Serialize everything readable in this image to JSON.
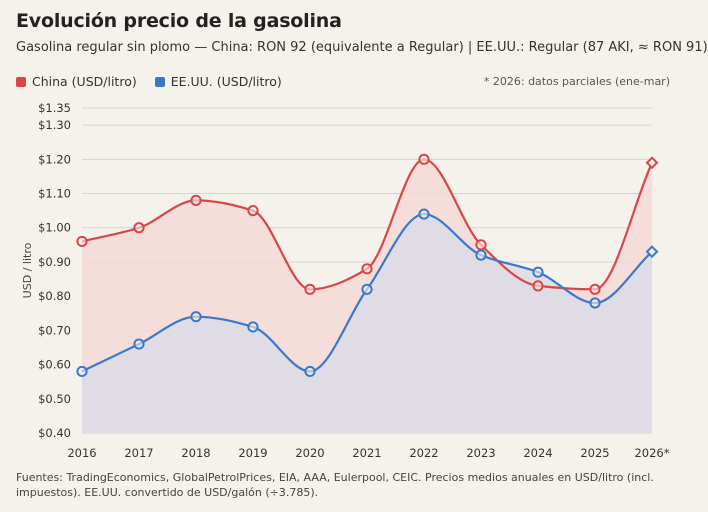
{
  "header": {
    "title": "Evolución precio de la gasolina",
    "subtitle": "Gasolina regular sin plomo — China: RON 92 (equivalente a Regular) | EE.UU.: Regular (87 AKI, ≈ RON 91)",
    "note": "* 2026: datos parciales (ene-mar)"
  },
  "footer": {
    "text": "Fuentes: TradingEconomics, GlobalPetrolPrices, EIA, AAA, Eulerpool, CEIC. Precios medios anuales en USD/litro (incl. impuestos). EE.UU. convertido de USD/galón (÷3.785)."
  },
  "colors": {
    "china": "#d9464a",
    "usa": "#3a78c9",
    "china_fill": "#f5d9d6",
    "usa_fill": "#dcdce6",
    "grid": "#d8d4cc"
  },
  "chart_data": {
    "type": "line",
    "x": [
      "2016",
      "2017",
      "2018",
      "2019",
      "2020",
      "2021",
      "2022",
      "2023",
      "2024",
      "2025",
      "2026*"
    ],
    "series": [
      {
        "name": "China (USD/litro)",
        "values": [
          0.96,
          1.0,
          1.08,
          1.05,
          0.82,
          0.88,
          1.2,
          0.95,
          0.83,
          0.82,
          1.19
        ],
        "color": "#d9464a"
      },
      {
        "name": "EE.UU. (USD/litro)",
        "values": [
          0.58,
          0.66,
          0.74,
          0.71,
          0.58,
          0.82,
          1.04,
          0.92,
          0.87,
          0.78,
          0.93
        ],
        "color": "#3a78c9"
      }
    ],
    "ylabel": "USD / litro",
    "xlabel": "",
    "ylim": [
      0.4,
      1.35
    ],
    "yticks": [
      0.4,
      0.5,
      0.6,
      0.7,
      0.8,
      0.9,
      1.0,
      1.1,
      1.2,
      1.3,
      1.35
    ],
    "ytick_labels": [
      "$0.40",
      "$0.50",
      "$0.60",
      "$0.70",
      "$0.80",
      "$0.90",
      "$1.00",
      "$1.10",
      "$1.20",
      "$1.30",
      "$1.35"
    ],
    "grid": true,
    "legend": "top-left",
    "partial_marker": "diamond"
  }
}
